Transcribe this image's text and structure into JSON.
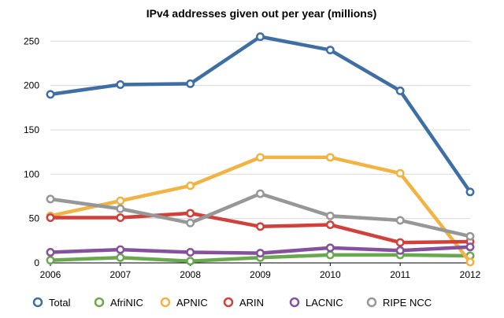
{
  "chart_data": {
    "type": "line",
    "title": "IPv4 addresses given out per year (millions)",
    "xlabel": "",
    "ylabel": "",
    "x": [
      "2006",
      "2007",
      "2008",
      "2009",
      "2010",
      "2011",
      "2012"
    ],
    "yticks": [
      "0",
      "50",
      "100",
      "150",
      "200",
      "250"
    ],
    "ylim": [
      0,
      260
    ],
    "grid": true,
    "legend_position": "bottom",
    "series": [
      {
        "name": "Total",
        "color": "#3e6ea3",
        "values": [
          190,
          201,
          202,
          255,
          240,
          194,
          80
        ]
      },
      {
        "name": "AfriNIC",
        "color": "#6aa84f",
        "values": [
          3,
          6,
          2,
          6,
          9,
          9,
          8
        ]
      },
      {
        "name": "APNIC",
        "color": "#f1b344",
        "values": [
          53,
          70,
          87,
          119,
          119,
          101,
          1
        ]
      },
      {
        "name": "ARIN",
        "color": "#d0413b",
        "values": [
          51,
          51,
          56,
          41,
          43,
          23,
          24
        ]
      },
      {
        "name": "LACNIC",
        "color": "#85509c",
        "values": [
          12,
          15,
          12,
          11,
          17,
          14,
          18
        ]
      },
      {
        "name": "RIPE NCC",
        "color": "#979797",
        "values": [
          72,
          61,
          45,
          78,
          53,
          48,
          30
        ]
      }
    ]
  }
}
